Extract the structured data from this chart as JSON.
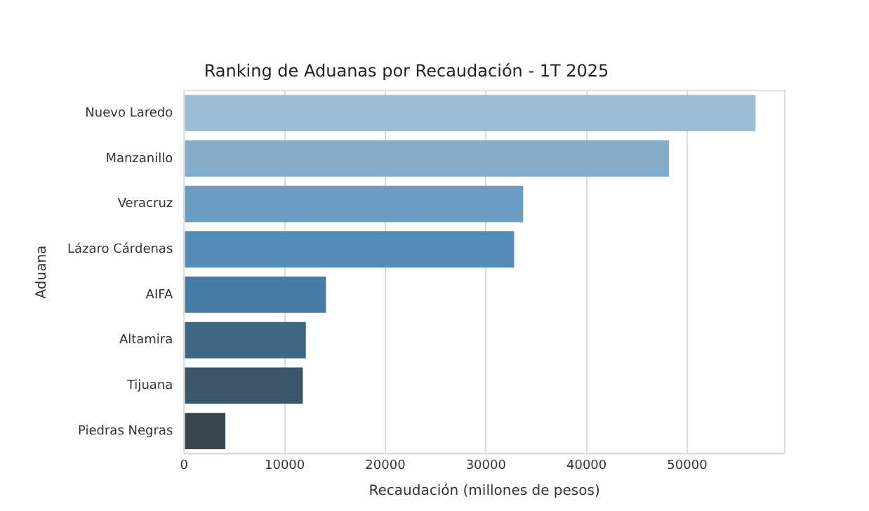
{
  "chart_data": {
    "type": "bar",
    "orientation": "horizontal",
    "title": "Ranking de Aduanas por Recaudación - 1T 2025",
    "xlabel": "Recaudación (millones de pesos)",
    "ylabel": "Aduana",
    "categories": [
      "Nuevo Laredo",
      "Manzanillo",
      "Veracruz",
      "Lázaro Cárdenas",
      "AIFA",
      "Altamira",
      "Tijuana",
      "Piedras Negras"
    ],
    "values": [
      56800,
      48200,
      33700,
      32800,
      14100,
      12100,
      11800,
      4100
    ],
    "colors": [
      "#9dbdd7",
      "#85adcb",
      "#6b9dc2",
      "#548bb8",
      "#467ca5",
      "#3f6786",
      "#3b5569",
      "#384650"
    ],
    "xlim": [
      0,
      59700
    ],
    "xticks": [
      0,
      10000,
      20000,
      30000,
      40000,
      50000
    ],
    "grid": "x",
    "legend": false
  }
}
